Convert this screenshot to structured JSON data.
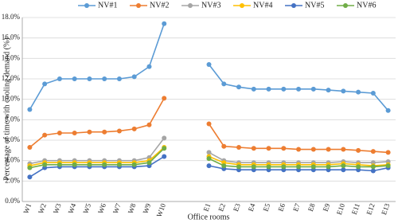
{
  "chart_data": {
    "type": "line",
    "y_label": "Percentage of time with cooling demand (%)",
    "x_label": "Office rooms",
    "categories": [
      "W1",
      "W2",
      "W3",
      "W4",
      "W5",
      "W6",
      "W7",
      "W8",
      "W9",
      "W10",
      null,
      null,
      "E1",
      "E2",
      "E3",
      "E4",
      "E5",
      "E6",
      "E7",
      "E8",
      "E9",
      "E10",
      "E11",
      "E12",
      "E13"
    ],
    "series": [
      {
        "name": "NV#1",
        "color": "#5b9bd5",
        "values": [
          9.0,
          11.5,
          12.0,
          12.0,
          12.0,
          12.0,
          12.0,
          12.2,
          13.2,
          17.4,
          null,
          null,
          13.4,
          11.5,
          11.2,
          11.0,
          11.0,
          11.0,
          11.0,
          11.0,
          10.9,
          10.8,
          10.7,
          10.6,
          8.9
        ]
      },
      {
        "name": "NV#2",
        "color": "#ed7d31",
        "values": [
          5.3,
          6.5,
          6.7,
          6.7,
          6.8,
          6.8,
          6.9,
          7.1,
          7.5,
          10.1,
          null,
          null,
          7.6,
          5.4,
          5.3,
          5.2,
          5.2,
          5.2,
          5.1,
          5.1,
          5.1,
          5.1,
          5.0,
          4.9,
          4.8
        ]
      },
      {
        "name": "NV#3",
        "color": "#a5a5a5",
        "values": [
          3.7,
          4.0,
          4.0,
          4.0,
          4.0,
          4.0,
          4.0,
          4.0,
          4.3,
          6.2,
          null,
          null,
          4.8,
          4.0,
          3.8,
          3.8,
          3.8,
          3.8,
          3.8,
          3.8,
          3.8,
          3.9,
          3.8,
          3.8,
          3.9
        ]
      },
      {
        "name": "NV#4",
        "color": "#ffc000",
        "values": [
          3.5,
          3.8,
          3.8,
          3.8,
          3.8,
          3.8,
          3.8,
          3.8,
          4.0,
          5.3,
          null,
          null,
          4.4,
          3.8,
          3.6,
          3.6,
          3.6,
          3.6,
          3.6,
          3.6,
          3.6,
          3.7,
          3.6,
          3.5,
          3.6
        ]
      },
      {
        "name": "NV#5",
        "color": "#4472c4",
        "values": [
          2.4,
          3.3,
          3.4,
          3.4,
          3.4,
          3.4,
          3.4,
          3.4,
          3.5,
          4.4,
          null,
          null,
          3.5,
          3.2,
          3.1,
          3.1,
          3.1,
          3.1,
          3.1,
          3.1,
          3.1,
          3.1,
          3.1,
          3.0,
          3.3
        ]
      },
      {
        "name": "NV#6",
        "color": "#70ad47",
        "values": [
          3.3,
          3.6,
          3.6,
          3.6,
          3.6,
          3.6,
          3.6,
          3.6,
          3.8,
          5.2,
          null,
          null,
          4.2,
          3.5,
          3.4,
          3.4,
          3.4,
          3.4,
          3.4,
          3.4,
          3.4,
          3.5,
          3.4,
          3.4,
          3.5
        ]
      }
    ],
    "ylim": [
      0,
      18
    ],
    "yticks": [
      {
        "value": 0,
        "label": "0.0%"
      },
      {
        "value": 2,
        "label": "2.0%"
      },
      {
        "value": 4,
        "label": "4.0%"
      },
      {
        "value": 6,
        "label": "6.0%"
      },
      {
        "value": 8,
        "label": "8.0%"
      },
      {
        "value": 10,
        "label": "10.0%"
      },
      {
        "value": 12,
        "label": "12.0%"
      },
      {
        "value": 14,
        "label": "14.0%"
      },
      {
        "value": 16,
        "label": "16.0%"
      },
      {
        "value": 18,
        "label": "18.0%"
      }
    ],
    "grid": true,
    "legend": "top"
  }
}
